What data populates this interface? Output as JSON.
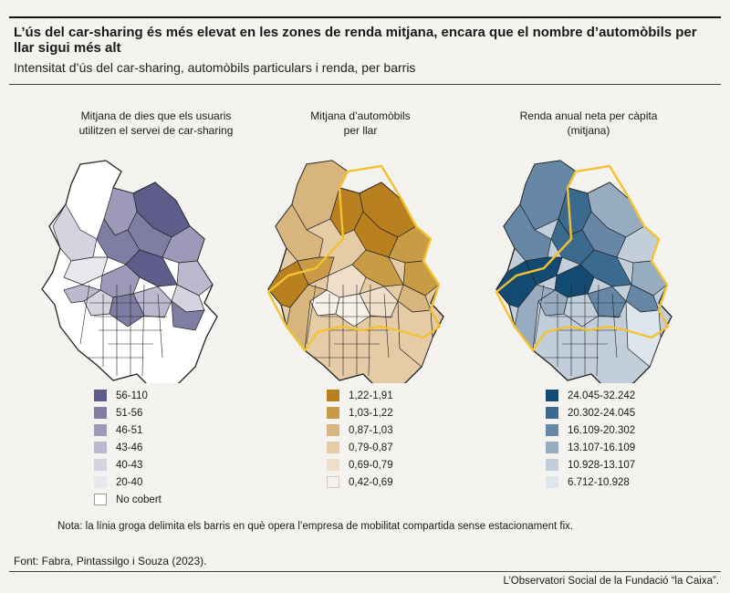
{
  "title": "L’ús del car-sharing és més elevat en les zones de renda mitjana, encara que el nombre d’automòbils per llar sigui més alt",
  "subtitle": "Intensitat d’ús del car-sharing, automòbils particulars i renda, per barris",
  "panels": [
    {
      "title_line1": "Mitjana de dies que els usuaris",
      "title_line2": "utilitzen el servei de car-sharing",
      "legend": [
        {
          "label": "56-110",
          "color": "#5e5c8a"
        },
        {
          "label": "51-56",
          "color": "#7f7da3"
        },
        {
          "label": "46-51",
          "color": "#9c9ab8"
        },
        {
          "label": "43-46",
          "color": "#bab9cd"
        },
        {
          "label": "40-43",
          "color": "#d4d3df"
        },
        {
          "label": "20-40",
          "color": "#e8e7ee"
        },
        {
          "label": "No cobert",
          "color": "#ffffff"
        }
      ]
    },
    {
      "title_line1": "Mitjana d’automòbils",
      "title_line2": "per llar",
      "legend": [
        {
          "label": "1,22-1,91",
          "color": "#b9801f"
        },
        {
          "label": "1,03-1,22",
          "color": "#c99b45"
        },
        {
          "label": "0,87-1,03",
          "color": "#d8b57c"
        },
        {
          "label": "0,79-0,87",
          "color": "#e5cba6"
        },
        {
          "label": "0,69-0,79",
          "color": "#efdfca"
        },
        {
          "label": "0,42-0,69",
          "color": "#f8f1e8"
        }
      ]
    },
    {
      "title_line1": "Renda anual neta per càpita",
      "title_line2": "(mitjana)",
      "legend": [
        {
          "label": "24.045-32.242",
          "color": "#134a73"
        },
        {
          "label": "20.302-24.045",
          "color": "#3a6a8d"
        },
        {
          "label": "16.109-20.302",
          "color": "#6688a6"
        },
        {
          "label": "13.107-16.109",
          "color": "#97acc1"
        },
        {
          "label": "10.928-13.107",
          "color": "#c2cfdb"
        },
        {
          "label": "6.712-10.928",
          "color": "#dfe5ec"
        }
      ]
    }
  ],
  "highlight_color": "#f2c230",
  "note": "Nota: la línia groga delimita els barris en què opera l’empresa de mobilitat compartida sense estacionament fix.",
  "source": "Font: Fabra, Pintassilgo i Souza (2023).",
  "credit": "L’Observatori Social de la Fundació “la Caixa”."
}
